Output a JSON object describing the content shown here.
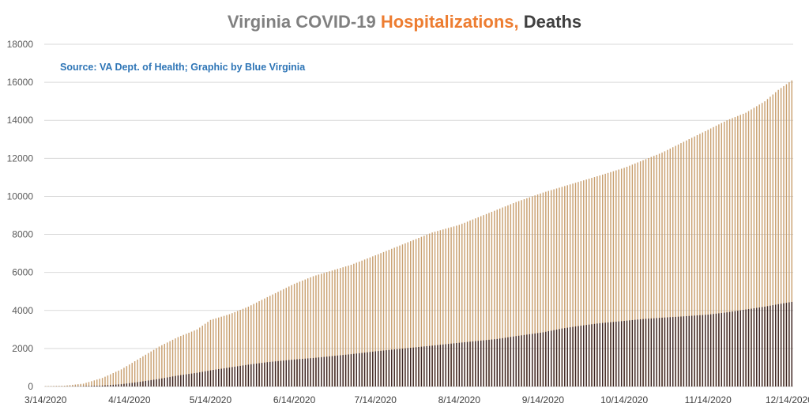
{
  "chart_data": {
    "type": "bar",
    "title": {
      "part1": "Virginia COVID-19 ",
      "part2": "Hospitalizations,",
      "part3": " Deaths"
    },
    "annotation": "Source: VA Dept. of Health; Graphic by Blue Virginia",
    "ylim": [
      0,
      18000
    ],
    "y_ticks": [
      0,
      2000,
      4000,
      6000,
      8000,
      10000,
      12000,
      14000,
      16000,
      18000
    ],
    "x_start": "2020-03-14",
    "x_end": "2020-12-15",
    "x_tick_labels": [
      "3/14/2020",
      "4/14/2020",
      "5/14/2020",
      "6/14/2020",
      "7/14/2020",
      "8/14/2020",
      "9/14/2020",
      "10/14/2020",
      "11/14/2020",
      "12/14/2020"
    ],
    "x_tick_dates": [
      "2020-03-14",
      "2020-04-14",
      "2020-05-14",
      "2020-06-14",
      "2020-07-14",
      "2020-08-14",
      "2020-09-14",
      "2020-10-14",
      "2020-11-14",
      "2020-12-14"
    ],
    "grid": true,
    "legend": "none",
    "series": [
      {
        "name": "Hospitalizations",
        "color": "#c9a070",
        "points": [
          [
            "2020-03-14",
            20
          ],
          [
            "2020-03-21",
            40
          ],
          [
            "2020-03-28",
            150
          ],
          [
            "2020-04-04",
            450
          ],
          [
            "2020-04-11",
            900
          ],
          [
            "2020-04-18",
            1500
          ],
          [
            "2020-04-25",
            2100
          ],
          [
            "2020-05-02",
            2600
          ],
          [
            "2020-05-09",
            3000
          ],
          [
            "2020-05-14",
            3500
          ],
          [
            "2020-05-21",
            3800
          ],
          [
            "2020-05-28",
            4200
          ],
          [
            "2020-06-04",
            4700
          ],
          [
            "2020-06-14",
            5400
          ],
          [
            "2020-06-21",
            5800
          ],
          [
            "2020-06-28",
            6100
          ],
          [
            "2020-07-05",
            6400
          ],
          [
            "2020-07-14",
            6900
          ],
          [
            "2020-07-21",
            7300
          ],
          [
            "2020-07-28",
            7700
          ],
          [
            "2020-08-04",
            8100
          ],
          [
            "2020-08-14",
            8500
          ],
          [
            "2020-08-21",
            8900
          ],
          [
            "2020-08-28",
            9300
          ],
          [
            "2020-09-04",
            9700
          ],
          [
            "2020-09-14",
            10200
          ],
          [
            "2020-09-21",
            10500
          ],
          [
            "2020-09-28",
            10800
          ],
          [
            "2020-10-05",
            11100
          ],
          [
            "2020-10-14",
            11500
          ],
          [
            "2020-10-21",
            11900
          ],
          [
            "2020-10-28",
            12300
          ],
          [
            "2020-11-04",
            12800
          ],
          [
            "2020-11-14",
            13500
          ],
          [
            "2020-11-21",
            14000
          ],
          [
            "2020-11-28",
            14400
          ],
          [
            "2020-12-05",
            15000
          ],
          [
            "2020-12-10",
            15600
          ],
          [
            "2020-12-15",
            16100
          ]
        ]
      },
      {
        "name": "Deaths",
        "color": "#3b2320",
        "points": [
          [
            "2020-03-14",
            2
          ],
          [
            "2020-03-21",
            5
          ],
          [
            "2020-03-28",
            20
          ],
          [
            "2020-04-04",
            50
          ],
          [
            "2020-04-11",
            120
          ],
          [
            "2020-04-18",
            250
          ],
          [
            "2020-04-25",
            400
          ],
          [
            "2020-05-02",
            580
          ],
          [
            "2020-05-09",
            720
          ],
          [
            "2020-05-14",
            850
          ],
          [
            "2020-05-21",
            1000
          ],
          [
            "2020-05-28",
            1150
          ],
          [
            "2020-06-04",
            1280
          ],
          [
            "2020-06-14",
            1420
          ],
          [
            "2020-06-21",
            1500
          ],
          [
            "2020-06-28",
            1600
          ],
          [
            "2020-07-05",
            1700
          ],
          [
            "2020-07-14",
            1850
          ],
          [
            "2020-07-21",
            1950
          ],
          [
            "2020-07-28",
            2050
          ],
          [
            "2020-08-04",
            2150
          ],
          [
            "2020-08-14",
            2300
          ],
          [
            "2020-08-21",
            2400
          ],
          [
            "2020-08-28",
            2500
          ],
          [
            "2020-09-04",
            2650
          ],
          [
            "2020-09-14",
            2850
          ],
          [
            "2020-09-21",
            3050
          ],
          [
            "2020-09-28",
            3200
          ],
          [
            "2020-10-05",
            3330
          ],
          [
            "2020-10-14",
            3450
          ],
          [
            "2020-10-21",
            3550
          ],
          [
            "2020-10-28",
            3620
          ],
          [
            "2020-11-04",
            3680
          ],
          [
            "2020-11-14",
            3780
          ],
          [
            "2020-11-21",
            3900
          ],
          [
            "2020-11-28",
            4050
          ],
          [
            "2020-12-05",
            4200
          ],
          [
            "2020-12-10",
            4330
          ],
          [
            "2020-12-15",
            4450
          ]
        ]
      }
    ]
  },
  "colors": {
    "title_gray": "#808080",
    "title_orange": "#ed7d31",
    "title_dark": "#404040",
    "annotation": "#2e75b6"
  }
}
